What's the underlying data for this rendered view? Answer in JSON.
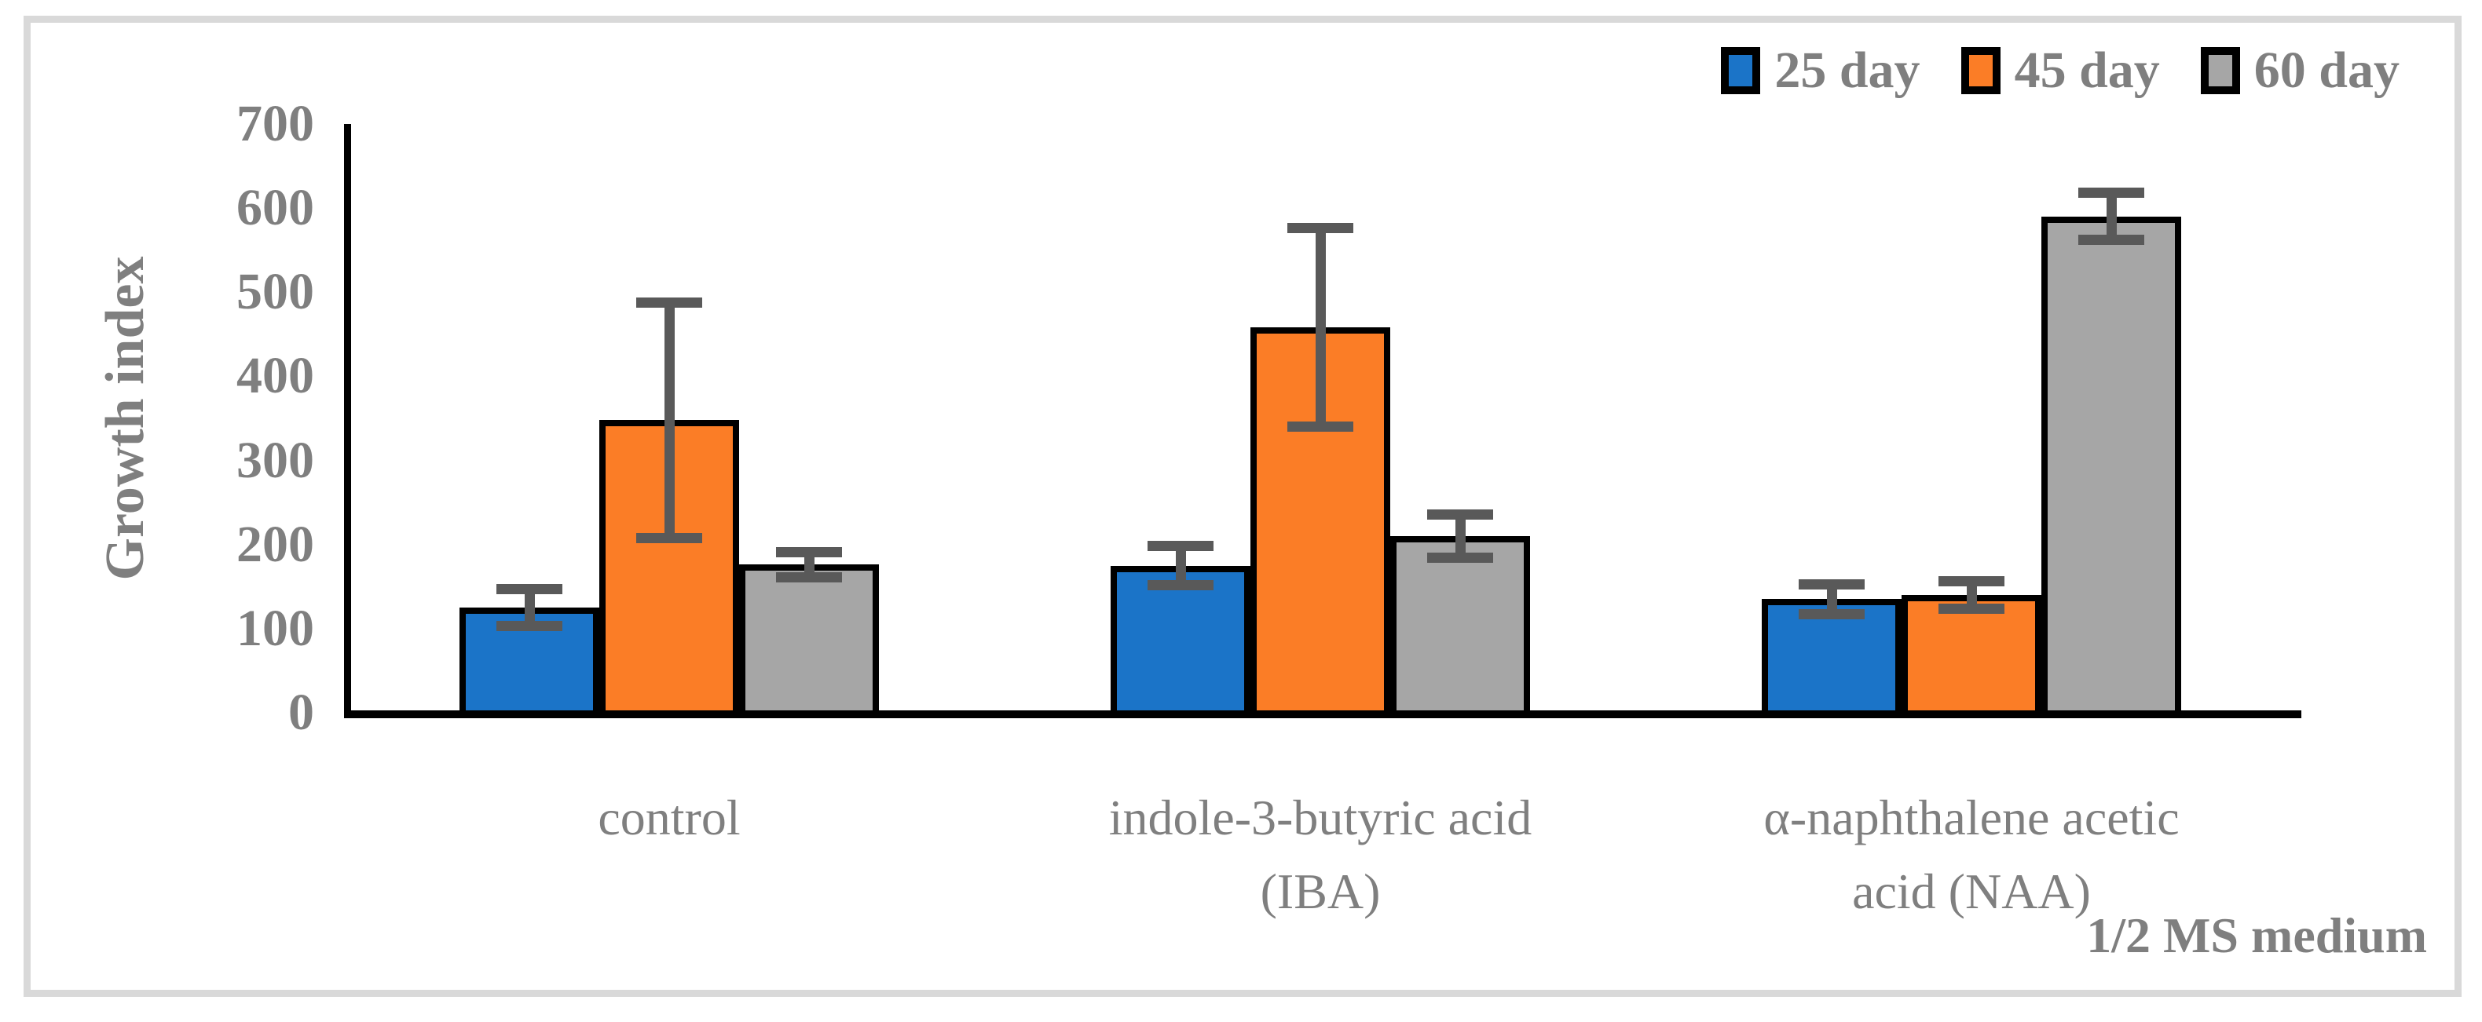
{
  "chart_data": {
    "type": "bar",
    "title": "",
    "ylabel": "Growth index",
    "xlabel": "",
    "ylim": [
      0,
      700
    ],
    "yticks": [
      0,
      100,
      200,
      300,
      400,
      500,
      600,
      700
    ],
    "grid": false,
    "legend_position": "top-right",
    "categories": [
      [
        "control"
      ],
      [
        "indole-3-butyric acid",
        "(IBA)"
      ],
      [
        "α-naphthalene acetic",
        "acid (NAA)"
      ]
    ],
    "series": [
      {
        "name": "25 day",
        "color": "#1B74C8",
        "values": [
          125,
          175,
          135
        ],
        "errors": [
          22,
          23,
          18
        ]
      },
      {
        "name": "45 day",
        "color": "#FB7D26",
        "values": [
          348,
          458,
          140
        ],
        "errors": [
          140,
          118,
          16
        ]
      },
      {
        "name": "60 day",
        "color": "#A6A6A6",
        "values": [
          176,
          210,
          590
        ],
        "errors": [
          15,
          26,
          28
        ]
      }
    ],
    "error_bar_color": "#595959",
    "axis_color": "#000000",
    "text_color": "#7F7F7F",
    "frame_color": "#D9D9D9",
    "annotation": "1/2 MS medium"
  }
}
